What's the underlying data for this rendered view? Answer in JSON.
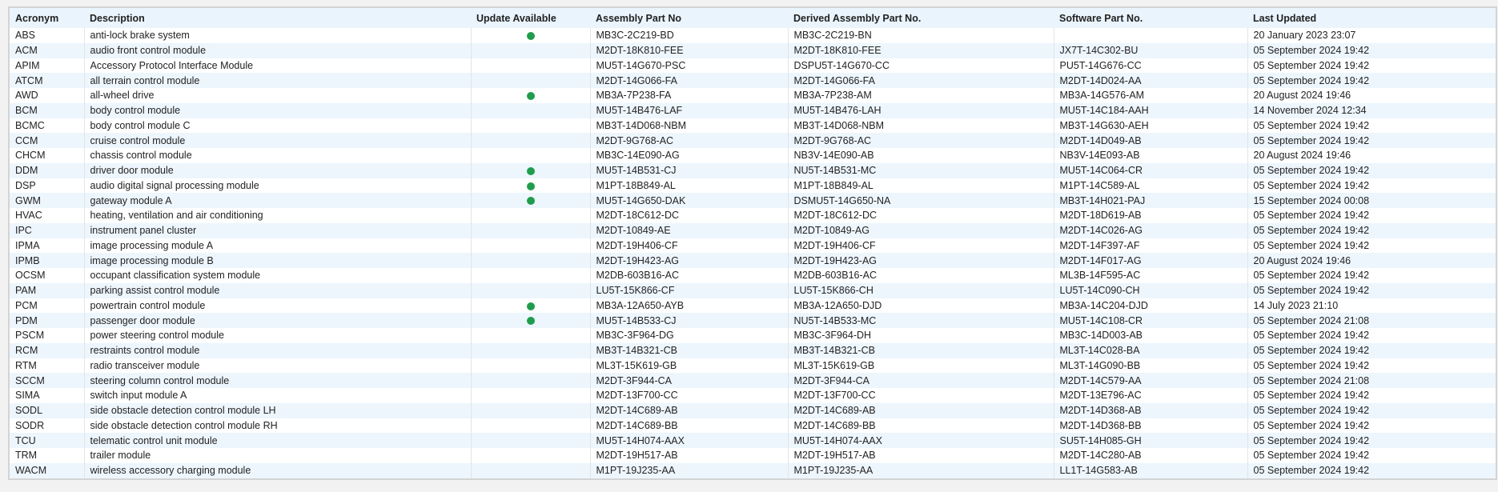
{
  "table": {
    "columns": [
      "Acronym",
      "Description",
      "Update Available",
      "Assembly Part No",
      "Derived Assembly Part No.",
      "Software Part No.",
      "Last Updated"
    ],
    "rows": [
      [
        "ABS",
        "anti-lock brake system",
        true,
        "MB3C-2C219-BD",
        "MB3C-2C219-BN",
        null,
        "20 January 2023 23:07"
      ],
      [
        "ACM",
        "audio front control module",
        false,
        "M2DT-18K810-FEE",
        "M2DT-18K810-FEE",
        "JX7T-14C302-BU",
        "05 September 2024 19:42"
      ],
      [
        "APIM",
        "Accessory Protocol Interface Module",
        false,
        "MU5T-14G670-PSC",
        "DSPU5T-14G670-CC",
        "PU5T-14G676-CC",
        "05 September 2024 19:42"
      ],
      [
        "ATCM",
        "all terrain control module",
        false,
        "M2DT-14G066-FA",
        "M2DT-14G066-FA",
        "M2DT-14D024-AA",
        "05 September 2024 19:42"
      ],
      [
        "AWD",
        "all-wheel drive",
        true,
        "MB3A-7P238-FA",
        "MB3A-7P238-AM",
        "MB3A-14G576-AM",
        "20 August 2024 19:46"
      ],
      [
        "BCM",
        "body control module",
        false,
        "MU5T-14B476-LAF",
        "MU5T-14B476-LAH",
        "MU5T-14C184-AAH",
        "14 November 2024 12:34"
      ],
      [
        "BCMC",
        "body control module C",
        false,
        "MB3T-14D068-NBM",
        "MB3T-14D068-NBM",
        "MB3T-14G630-AEH",
        "05 September 2024 19:42"
      ],
      [
        "CCM",
        "cruise control module",
        false,
        "M2DT-9G768-AC",
        "M2DT-9G768-AC",
        "M2DT-14D049-AB",
        "05 September 2024 19:42"
      ],
      [
        "CHCM",
        "chassis control module",
        false,
        "MB3C-14E090-AG",
        "NB3V-14E090-AB",
        "NB3V-14E093-AB",
        "20 August 2024 19:46"
      ],
      [
        "DDM",
        "driver door module",
        true,
        "MU5T-14B531-CJ",
        "NU5T-14B531-MC",
        "MU5T-14C064-CR",
        "05 September 2024 19:42"
      ],
      [
        "DSP",
        "audio digital signal processing module",
        true,
        "M1PT-18B849-AL",
        "M1PT-18B849-AL",
        "M1PT-14C589-AL",
        "05 September 2024 19:42"
      ],
      [
        "GWM",
        "gateway module A",
        true,
        "MU5T-14G650-DAK",
        "DSMU5T-14G650-NA",
        "MB3T-14H021-PAJ",
        "15 September 2024 00:08"
      ],
      [
        "HVAC",
        "heating, ventilation and air conditioning",
        false,
        "M2DT-18C612-DC",
        "M2DT-18C612-DC",
        "M2DT-18D619-AB",
        "05 September 2024 19:42"
      ],
      [
        "IPC",
        "instrument panel cluster",
        false,
        "M2DT-10849-AE",
        "M2DT-10849-AG",
        "M2DT-14C026-AG",
        "05 September 2024 19:42"
      ],
      [
        "IPMA",
        "image processing module A",
        false,
        "M2DT-19H406-CF",
        "M2DT-19H406-CF",
        "M2DT-14F397-AF",
        "05 September 2024 19:42"
      ],
      [
        "IPMB",
        "image processing module B",
        false,
        "M2DT-19H423-AG",
        "M2DT-19H423-AG",
        "M2DT-14F017-AG",
        "20 August 2024 19:46"
      ],
      [
        "OCSM",
        "occupant classification system module",
        false,
        "M2DB-603B16-AC",
        "M2DB-603B16-AC",
        "ML3B-14F595-AC",
        "05 September 2024 19:42"
      ],
      [
        "PAM",
        "parking assist control module",
        false,
        "LU5T-15K866-CF",
        "LU5T-15K866-CH",
        "LU5T-14C090-CH",
        "05 September 2024 19:42"
      ],
      [
        "PCM",
        "powertrain control module",
        true,
        "MB3A-12A650-AYB",
        "MB3A-12A650-DJD",
        "MB3A-14C204-DJD",
        "14 July 2023 21:10"
      ],
      [
        "PDM",
        "passenger door module",
        true,
        "MU5T-14B533-CJ",
        "NU5T-14B533-MC",
        "MU5T-14C108-CR",
        "05 September 2024 21:08"
      ],
      [
        "PSCM",
        "power steering control module",
        false,
        "MB3C-3F964-DG",
        "MB3C-3F964-DH",
        "MB3C-14D003-AB",
        "05 September 2024 19:42"
      ],
      [
        "RCM",
        "restraints control module",
        false,
        "MB3T-14B321-CB",
        "MB3T-14B321-CB",
        "ML3T-14C028-BA",
        "05 September 2024 19:42"
      ],
      [
        "RTM",
        "radio transceiver module",
        false,
        "ML3T-15K619-GB",
        "ML3T-15K619-GB",
        "ML3T-14G090-BB",
        "05 September 2024 19:42"
      ],
      [
        "SCCM",
        "steering column control module",
        false,
        "M2DT-3F944-CA",
        "M2DT-3F944-CA",
        "M2DT-14C579-AA",
        "05 September 2024 21:08"
      ],
      [
        "SIMA",
        "switch input module A",
        false,
        "M2DT-13F700-CC",
        "M2DT-13F700-CC",
        "M2DT-13E796-AC",
        "05 September 2024 19:42"
      ],
      [
        "SODL",
        "side obstacle detection control module LH",
        false,
        "M2DT-14C689-AB",
        "M2DT-14C689-AB",
        "M2DT-14D368-AB",
        "05 September 2024 19:42"
      ],
      [
        "SODR",
        "side obstacle detection control module RH",
        false,
        "M2DT-14C689-BB",
        "M2DT-14C689-BB",
        "M2DT-14D368-BB",
        "05 September 2024 19:42"
      ],
      [
        "TCU",
        "telematic control unit module",
        false,
        "MU5T-14H074-AAX",
        "MU5T-14H074-AAX",
        "SU5T-14H085-GH",
        "05 September 2024 19:42"
      ],
      [
        "TRM",
        "trailer module",
        false,
        "M2DT-19H517-AB",
        "M2DT-19H517-AB",
        "M2DT-14C280-AB",
        "05 September 2024 19:42"
      ],
      [
        "WACM",
        "wireless accessory charging module",
        false,
        "M1PT-19J235-AA",
        "M1PT-19J235-AA",
        "LL1T-14G583-AB",
        "05 September 2024 19:42"
      ]
    ]
  }
}
